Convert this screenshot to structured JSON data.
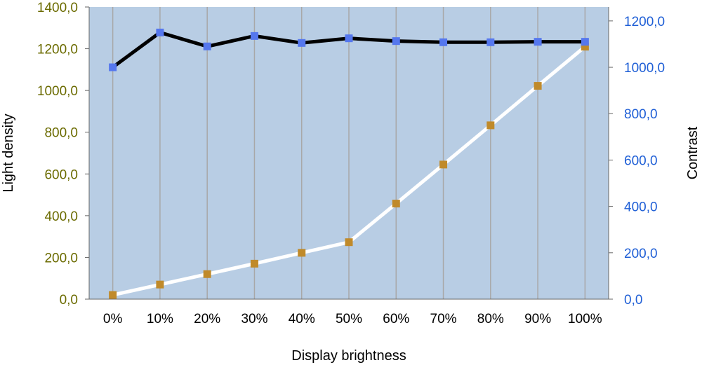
{
  "chart_data": {
    "type": "line",
    "title": "",
    "xlabel": "Display brightness",
    "ylabel_left": "Light density",
    "ylabel_right": "Contrast",
    "categories": [
      "0%",
      "10%",
      "20%",
      "30%",
      "40%",
      "50%",
      "60%",
      "70%",
      "80%",
      "90%",
      "100%"
    ],
    "ylim_left": [
      0,
      1400
    ],
    "ylim_right": [
      0,
      1260
    ],
    "y_ticks_left": [
      "0,0",
      "200,0",
      "400,0",
      "600,0",
      "800,0",
      "1000,0",
      "1200,0",
      "1400,0"
    ],
    "y_ticks_left_values": [
      0,
      200,
      400,
      600,
      800,
      1000,
      1200,
      1400
    ],
    "y_ticks_right": [
      "0,0",
      "200,0",
      "400,0",
      "600,0",
      "800,0",
      "1000,0",
      "1200,0"
    ],
    "y_ticks_right_values": [
      0,
      200,
      400,
      600,
      800,
      1000,
      1200
    ],
    "grid": true,
    "legend": "none",
    "series": [
      {
        "axis": "left",
        "line_color": "#ffffff",
        "marker_color": "#c08a2a",
        "values": [
          20,
          70,
          120,
          170,
          222,
          273,
          458,
          645,
          833,
          1022,
          1210
        ]
      },
      {
        "axis": "right",
        "line_color": "#000000",
        "marker_color": "#5577ee",
        "values": [
          1000,
          1150,
          1090,
          1135,
          1105,
          1125,
          1113,
          1108,
          1108,
          1110,
          1110
        ]
      }
    ],
    "colors": {
      "plot_background": "#b8cde4",
      "grid": "#a8a8a8",
      "left_tick": "#6b6b00",
      "right_tick": "#1f5fd6"
    }
  }
}
